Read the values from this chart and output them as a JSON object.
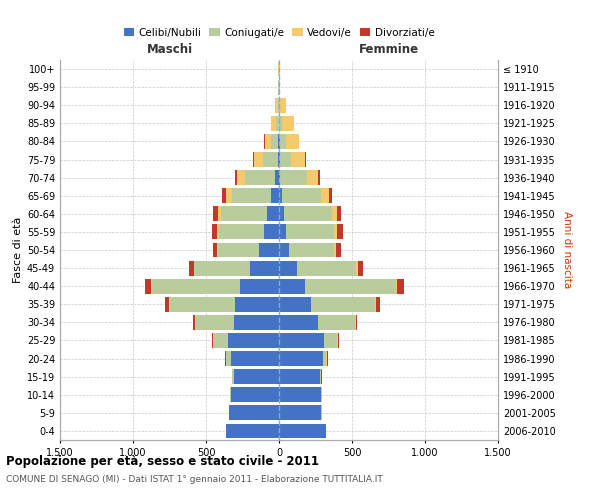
{
  "age_groups": [
    "0-4",
    "5-9",
    "10-14",
    "15-19",
    "20-24",
    "25-29",
    "30-34",
    "35-39",
    "40-44",
    "45-49",
    "50-54",
    "55-59",
    "60-64",
    "65-69",
    "70-74",
    "75-79",
    "80-84",
    "85-89",
    "90-94",
    "95-99",
    "100+"
  ],
  "birth_years": [
    "2006-2010",
    "2001-2005",
    "1996-2000",
    "1991-1995",
    "1986-1990",
    "1981-1985",
    "1976-1980",
    "1971-1975",
    "1966-1970",
    "1961-1965",
    "1956-1960",
    "1951-1955",
    "1946-1950",
    "1941-1945",
    "1936-1940",
    "1931-1935",
    "1926-1930",
    "1921-1925",
    "1916-1920",
    "1911-1915",
    "≤ 1910"
  ],
  "colors": {
    "celibe": "#4472c4",
    "coniugato": "#b8cc9e",
    "vedovo": "#f5c96e",
    "divorziato": "#c0392b"
  },
  "males": {
    "celibe": [
      360,
      340,
      330,
      310,
      330,
      350,
      310,
      300,
      270,
      200,
      140,
      100,
      80,
      55,
      30,
      10,
      5,
      2,
      0,
      0,
      0
    ],
    "coniugato": [
      2,
      2,
      5,
      10,
      30,
      100,
      260,
      450,
      600,
      380,
      280,
      310,
      320,
      270,
      200,
      100,
      50,
      20,
      8,
      4,
      2
    ],
    "vedovo": [
      0,
      0,
      2,
      2,
      5,
      5,
      5,
      5,
      5,
      5,
      8,
      15,
      20,
      40,
      55,
      60,
      40,
      35,
      20,
      4,
      2
    ],
    "divorziato": [
      0,
      0,
      0,
      2,
      5,
      5,
      15,
      25,
      40,
      30,
      25,
      35,
      35,
      25,
      15,
      5,
      5,
      0,
      0,
      0,
      0
    ]
  },
  "females": {
    "nubile": [
      320,
      290,
      290,
      280,
      300,
      310,
      270,
      220,
      180,
      120,
      70,
      50,
      35,
      20,
      10,
      5,
      5,
      2,
      0,
      0,
      0
    ],
    "coniugata": [
      2,
      2,
      5,
      8,
      25,
      90,
      250,
      440,
      620,
      410,
      310,
      330,
      330,
      270,
      180,
      80,
      40,
      20,
      8,
      4,
      2
    ],
    "vedova": [
      0,
      0,
      2,
      2,
      5,
      5,
      5,
      5,
      8,
      8,
      12,
      20,
      30,
      55,
      80,
      95,
      90,
      80,
      40,
      5,
      3
    ],
    "divorziata": [
      0,
      0,
      0,
      2,
      5,
      5,
      10,
      30,
      50,
      40,
      30,
      35,
      30,
      20,
      10,
      5,
      5,
      2,
      0,
      0,
      0
    ]
  },
  "title": "Popolazione per età, sesso e stato civile - 2011",
  "subtitle": "COMUNE DI SENAGO (MI) - Dati ISTAT 1° gennaio 2011 - Elaborazione TUTTITALIA.IT",
  "xlabel_left": "Maschi",
  "xlabel_right": "Femmine",
  "ylabel_left": "Fasce di età",
  "ylabel_right": "Anni di nascita",
  "xlim": 1500,
  "xticks": [
    -1500,
    -1000,
    -500,
    0,
    500,
    1000,
    1500
  ],
  "xticklabels": [
    "1.500",
    "1.000",
    "500",
    "0",
    "500",
    "1.000",
    "1.500"
  ],
  "legend_labels": [
    "Celibi/Nubili",
    "Coniugati/e",
    "Vedovi/e",
    "Divorziati/e"
  ],
  "legend_colors": [
    "#4472c4",
    "#b8cc9e",
    "#f5c96e",
    "#c0392b"
  ]
}
